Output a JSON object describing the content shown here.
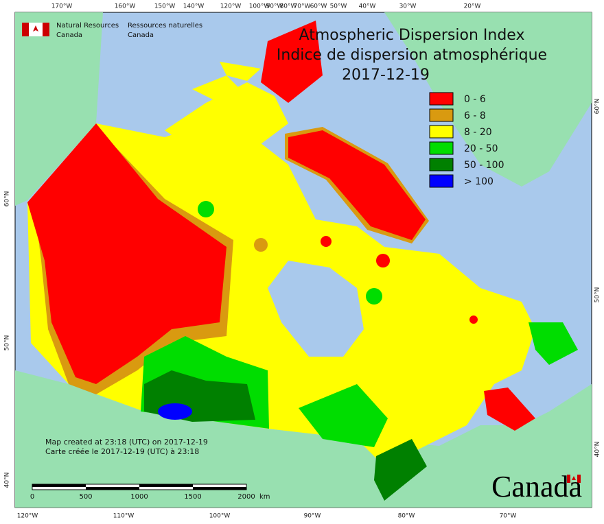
{
  "agency": {
    "en": [
      "Natural Resources",
      "Canada"
    ],
    "fr": [
      "Ressources naturelles",
      "Canada"
    ]
  },
  "title": [
    "Atmospheric Dispersion Index",
    "Indice de dispersion atmosphérique"
  ],
  "date": "2017-12-19",
  "legend": [
    {
      "label": "0 - 6",
      "color": "#ff0000"
    },
    {
      "label": "6 - 8",
      "color": "#d99a10"
    },
    {
      "label": "8 - 20",
      "color": "#ffff00"
    },
    {
      "label": "20 - 50",
      "color": "#00dd00"
    },
    {
      "label": "50 - 100",
      "color": "#008000"
    },
    {
      "label": "> 100",
      "color": "#0000ff"
    }
  ],
  "graticule": {
    "top": [
      "170°W",
      "160°W",
      "150°W",
      "140°W",
      "120°W",
      "100°W",
      "90°W",
      "80°W",
      "70°W",
      "60°W",
      "50°W",
      "40°W",
      "30°W",
      "20°W"
    ],
    "bottom": [
      "120°W",
      "110°W",
      "100°W",
      "90°W",
      "80°W",
      "70°W"
    ],
    "left": [
      "60°N",
      "50°N",
      "40°N"
    ],
    "right": [
      "60°N",
      "50°N",
      "40°N"
    ]
  },
  "notes": [
    "Map created at 23:18 (UTC) on 2017-12-19",
    "Carte créée le 2017-12-19 (UTC) à 23:18"
  ],
  "scale_bar": {
    "labels": [
      "0",
      "500",
      "1000",
      "1500",
      "2000"
    ],
    "unit": "km"
  },
  "wordmark": "Canada"
}
